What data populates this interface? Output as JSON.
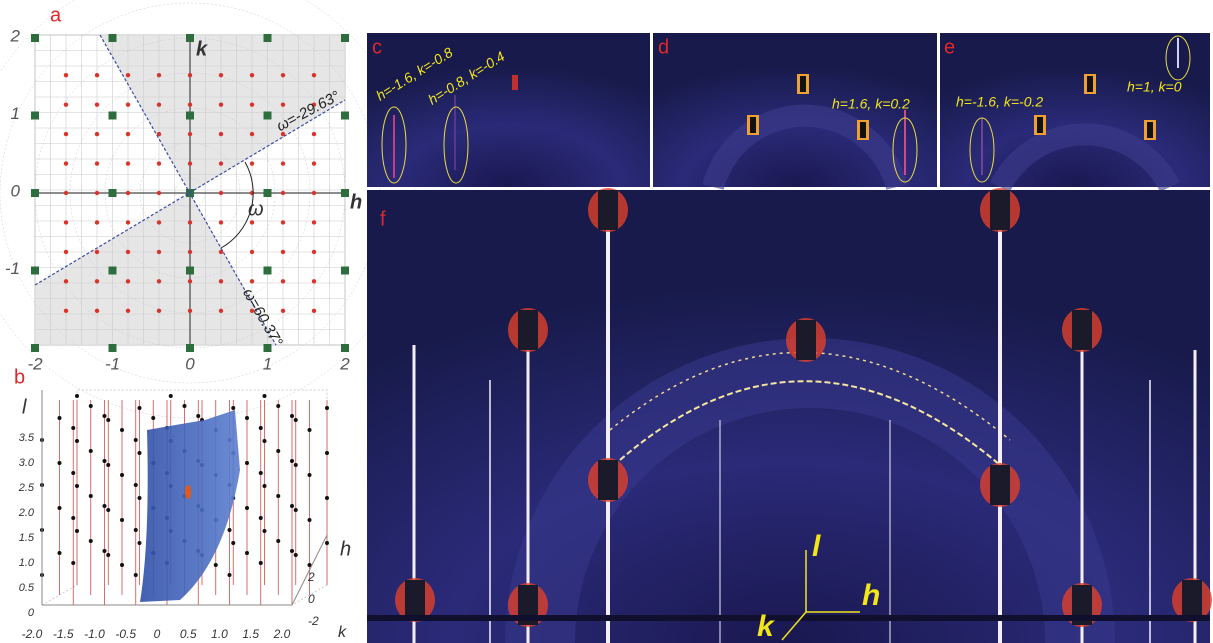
{
  "panels": {
    "a": {
      "label": "a",
      "axis_h": "h",
      "axis_k": "k",
      "omega": "ω",
      "h_ticks": [
        "-2",
        "-1",
        "0",
        "1",
        "2"
      ],
      "k_ticks": [
        "2",
        "1",
        "0",
        "-1"
      ],
      "line_1": "ω=-29.63°",
      "line_2": "ω=60.37°"
    },
    "b": {
      "label": "b",
      "axis_l": "l",
      "axis_h": "h",
      "axis_k": "k",
      "l_ticks": [
        "0",
        "0.5",
        "1.0",
        "1.5",
        "2.0",
        "2.5",
        "3.0",
        "3.5"
      ],
      "k_ticks": [
        "-2.0",
        "-1.5",
        "-1.0",
        "-0.5",
        "0",
        "0.5",
        "1.0",
        "1.5",
        "2.0"
      ],
      "h_ticks": [
        "2",
        "0",
        "-2"
      ]
    },
    "c": {
      "label": "c",
      "annotations": [
        "h=-1.6, k=-0.8",
        "h=-0.8, k=-0.4"
      ]
    },
    "d": {
      "label": "d",
      "annotations": [
        "h=1.6, k=0.2"
      ]
    },
    "e": {
      "label": "e",
      "annotations": [
        "h=-1.6, k=-0.2",
        "h=1, k=0"
      ]
    },
    "f": {
      "label": "f",
      "axis_l": "l",
      "axis_h": "h",
      "axis_k": "k"
    }
  }
}
